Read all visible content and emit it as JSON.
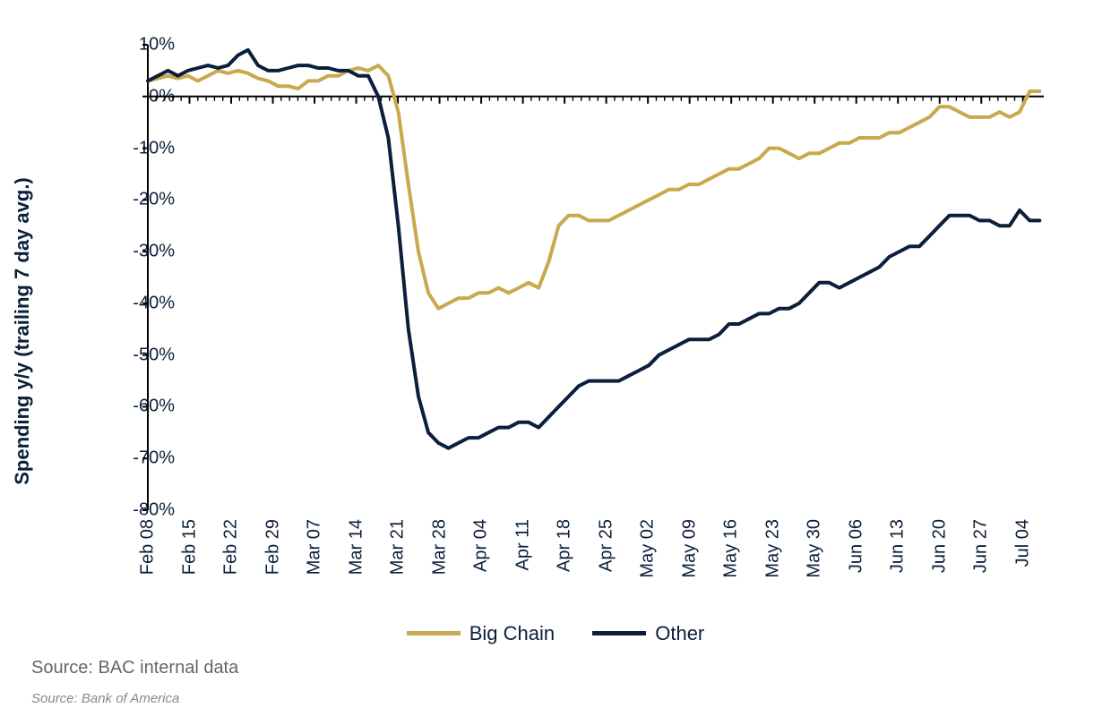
{
  "chart": {
    "type": "line",
    "background_color": "#ffffff",
    "axis_color": "#000000",
    "tick_color": "#000000",
    "line_width": 4,
    "y_axis": {
      "label": "Spending y/y (trailing 7 day avg.)",
      "label_fontsize": 22,
      "label_fontweight": "bold",
      "label_color": "#0b1f3b",
      "min": -80,
      "max": 10,
      "tick_step": 10,
      "ticks": [
        10,
        0,
        -10,
        -20,
        -30,
        -40,
        -50,
        -60,
        -70,
        -80
      ],
      "tick_labels": [
        "10%",
        "0%",
        "-10%",
        "-20%",
        "-30%",
        "-40%",
        "-50%",
        "-60%",
        "-70%",
        "-80%"
      ],
      "tick_fontsize": 20,
      "tick_color": "#0b1f3b"
    },
    "x_axis": {
      "categories": [
        "Feb 08",
        "Feb 15",
        "Feb 22",
        "Feb 29",
        "Mar 07",
        "Mar 14",
        "Mar 21",
        "Mar 28",
        "Apr 04",
        "Apr 11",
        "Apr 18",
        "Apr 25",
        "May 02",
        "May 09",
        "May 16",
        "May 23",
        "May 30",
        "Jun 06",
        "Jun 13",
        "Jun 20",
        "Jun 27",
        "Jul 04"
      ],
      "label_fontsize": 20,
      "label_color": "#0b1f3b",
      "rotation_deg": -90
    },
    "series": [
      {
        "name": "Big Chain",
        "color": "#c8a94d",
        "values_raw": [
          3,
          3.5,
          4,
          3.5,
          4,
          3,
          4,
          5,
          4.5,
          5,
          4.5,
          3.5,
          3,
          2,
          2,
          1.5,
          3,
          3,
          4,
          4,
          5,
          5.5,
          5,
          6,
          4,
          -3,
          -17,
          -30,
          -38,
          -41,
          -40,
          -39,
          -39,
          -38,
          -38,
          -37,
          -38,
          -37,
          -36,
          -37,
          -32,
          -25,
          -23,
          -23,
          -24,
          -24,
          -24,
          -23,
          -22,
          -21,
          -20,
          -19,
          -18,
          -18,
          -17,
          -17,
          -16,
          -15,
          -14,
          -14,
          -13,
          -12,
          -10,
          -10,
          -11,
          -12,
          -11,
          -11,
          -10,
          -9,
          -9,
          -8,
          -8,
          -8,
          -7,
          -7,
          -6,
          -5,
          -4,
          -2,
          -2,
          -3,
          -4,
          -4,
          -4,
          -3,
          -4,
          -3,
          1,
          1
        ]
      },
      {
        "name": "Other",
        "color": "#0b1f3b",
        "values_raw": [
          3,
          4,
          5,
          4,
          5,
          5.5,
          6,
          5.5,
          6,
          8,
          9,
          6,
          5,
          5,
          5.5,
          6,
          6,
          5.5,
          5.5,
          5,
          5,
          4,
          4,
          0,
          -8,
          -25,
          -45,
          -58,
          -65,
          -67,
          -68,
          -67,
          -66,
          -66,
          -65,
          -64,
          -64,
          -63,
          -63,
          -64,
          -62,
          -60,
          -58,
          -56,
          -55,
          -55,
          -55,
          -55,
          -54,
          -53,
          -52,
          -50,
          -49,
          -48,
          -47,
          -47,
          -47,
          -46,
          -44,
          -44,
          -43,
          -42,
          -42,
          -41,
          -41,
          -40,
          -38,
          -36,
          -36,
          -37,
          -36,
          -35,
          -34,
          -33,
          -31,
          -30,
          -29,
          -29,
          -27,
          -25,
          -23,
          -23,
          -23,
          -24,
          -24,
          -25,
          -25,
          -22,
          -24,
          -24
        ]
      }
    ],
    "legend": {
      "items": [
        {
          "label": "Big Chain",
          "color": "#c8a94d"
        },
        {
          "label": "Other",
          "color": "#0b1f3b"
        }
      ],
      "fontsize": 22,
      "position": "bottom-center",
      "swatch_width": 60,
      "swatch_height": 5
    },
    "sources": {
      "primary": "Source: BAC internal data",
      "primary_fontsize": 20,
      "primary_color": "#666666",
      "secondary": "Source: Bank of America",
      "secondary_fontsize": 15,
      "secondary_fontstyle": "italic",
      "secondary_color": "#888888"
    }
  }
}
